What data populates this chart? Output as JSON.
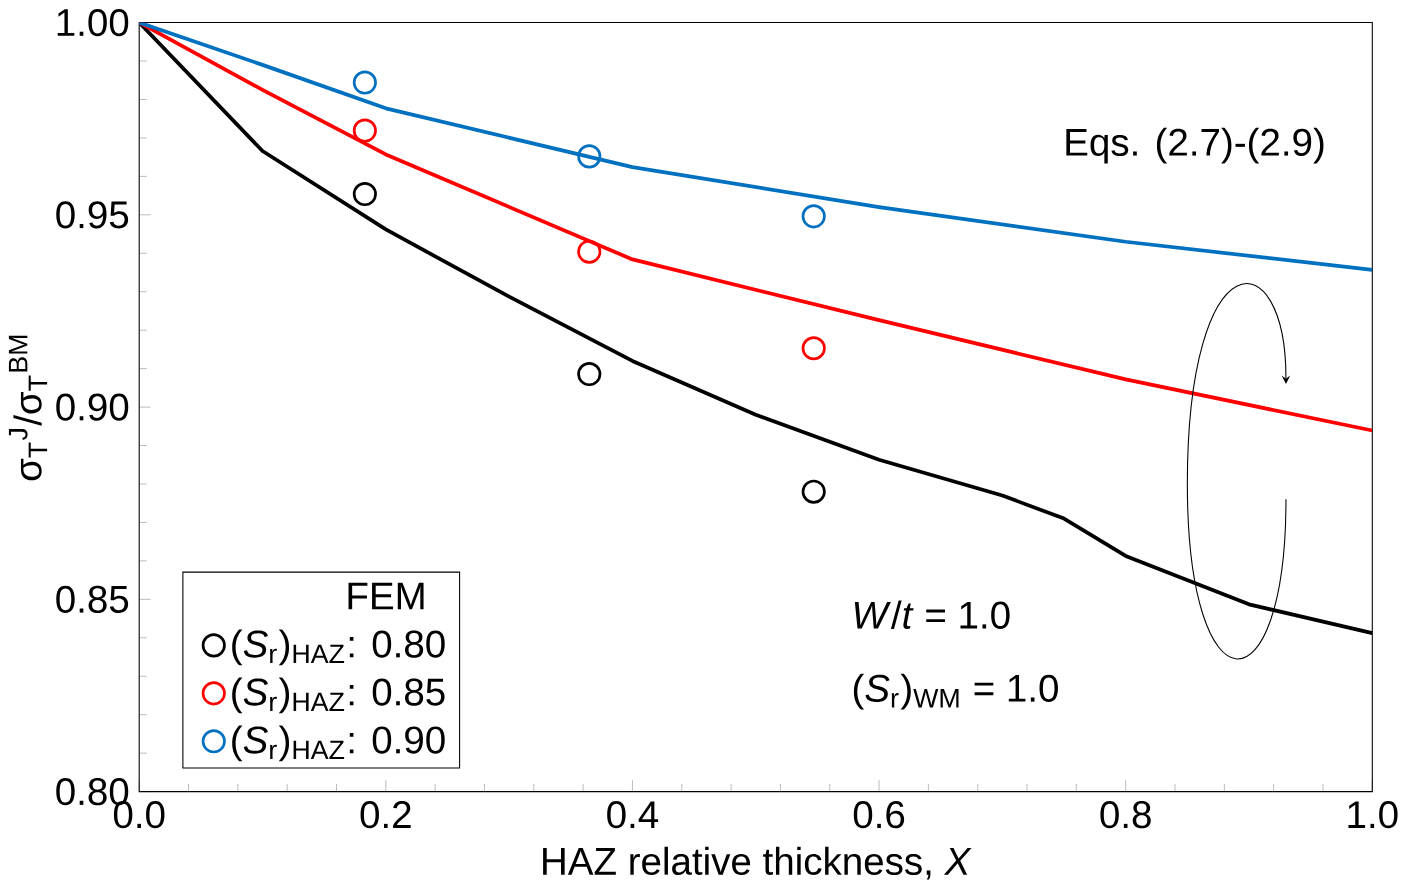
{
  "chart_data": {
    "type": "line",
    "xlabel": "HAZ relative thickness, *X*",
    "ylabel": "σ$_{T}$$^{J}$/σ$_{T}$$^{BM}$",
    "legend_title": "FEM",
    "annotations": [
      "Eqs. (2.7)-(2.9)",
      "*W*/*t* = 1.0",
      "(*S*$_{r}$)$_{WM}$ = 1.0"
    ],
    "xlim": [
      0,
      1
    ],
    "ylim": [
      0.8,
      1
    ],
    "xticks": [
      {
        "value": 0,
        "label": "0.0"
      },
      0.2,
      0.4,
      0.6,
      0.8,
      {
        "value": 1,
        "label": "1.0"
      }
    ],
    "yticks": [
      {
        "value": 0.8,
        "label": "0.80"
      },
      {
        "value": 0.85,
        "label": "0.85"
      },
      {
        "value": 0.9,
        "label": "0.90"
      },
      {
        "value": 0.95,
        "label": "0.95"
      },
      {
        "value": 1,
        "label": "1.00"
      }
    ],
    "grid": false,
    "legend": "bottom left",
    "series": [
      {
        "color": "#000000",
        "marker": "none",
        "line_style": "solid",
        "x": [
          0,
          0.1,
          0.2,
          0.3,
          0.4,
          0.5,
          0.6,
          0.7,
          0.75,
          0.8,
          0.9,
          1.0
        ],
        "values": [
          1.0,
          0.9666,
          0.9462,
          0.9287,
          0.912,
          0.898,
          0.8863,
          0.877,
          0.871,
          0.8613,
          0.8487,
          0.8412
        ]
      },
      {
        "color": "#ff0000",
        "marker": "none",
        "line_style": "solid",
        "x": [
          0,
          0.1,
          0.2,
          0.4,
          0.6,
          0.8,
          1.0
        ],
        "values": [
          1.0,
          0.9825,
          0.9657,
          0.9384,
          0.9226,
          0.9072,
          0.8939
        ]
      },
      {
        "color": "#0070c0",
        "marker": "none",
        "line_style": "solid",
        "x": [
          0,
          0.1,
          0.2,
          0.4,
          0.6,
          0.8,
          1.0
        ],
        "values": [
          1.0,
          0.989,
          0.9777,
          0.9624,
          0.952,
          0.943,
          0.9357
        ]
      },
      {
        "type": "scatter",
        "name": "(*S*$_{r}$)$_{HAZ}$: 0.80",
        "color": "#000000",
        "marker": "circle",
        "x": [
          0.183,
          0.365,
          0.547
        ],
        "values": [
          0.9554,
          0.9086,
          0.878
        ]
      },
      {
        "type": "scatter",
        "name": "(*S*$_{r}$)$_{HAZ}$: 0.85",
        "color": "#ff0000",
        "marker": "circle",
        "x": [
          0.183,
          0.365,
          0.547
        ],
        "values": [
          0.9719,
          0.9404,
          0.9153
        ]
      },
      {
        "type": "scatter",
        "name": "(*S*$_{r}$)$_{HAZ}$: 0.90",
        "color": "#0070c0",
        "marker": "circle",
        "x": [
          0.183,
          0.365,
          0.547
        ],
        "values": [
          0.9844,
          0.9652,
          0.9496
        ]
      }
    ]
  }
}
